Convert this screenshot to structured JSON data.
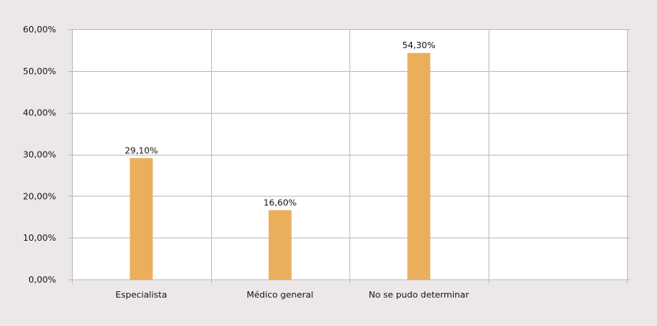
{
  "chart_data": {
    "type": "bar",
    "categories": [
      "Especialista",
      "Médico general",
      "No se pudo determinar",
      ""
    ],
    "values": [
      29.1,
      16.6,
      54.3,
      null
    ],
    "value_labels": [
      "29,10%",
      "16,60%",
      "54,30%",
      ""
    ],
    "ylim": [
      0,
      60
    ],
    "yticks": [
      0,
      10,
      20,
      30,
      40,
      50,
      60
    ],
    "ytick_labels": [
      "0,00%",
      "10,00%",
      "20,00%",
      "30,00%",
      "40,00%",
      "50,00%",
      "60,00%"
    ],
    "title": "",
    "xlabel": "",
    "ylabel": "",
    "grid": "horizontal and vertical",
    "legend": "none",
    "colors": {
      "background": "#ECE8E7",
      "plot_background": "#FFFFFF",
      "bar": "#EBAF5B",
      "grid": "#BDBDBD"
    }
  }
}
